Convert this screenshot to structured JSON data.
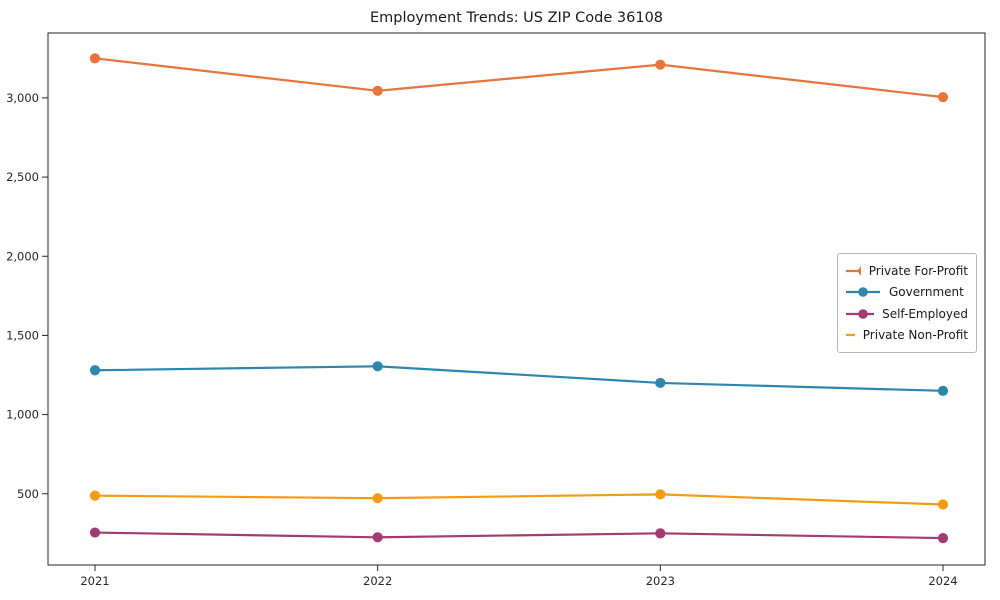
{
  "chart_data": {
    "type": "line",
    "title": "Employment Trends: US ZIP Code 36108",
    "categories": [
      "2021",
      "2022",
      "2023",
      "2024"
    ],
    "series": [
      {
        "name": "Private For-Profit",
        "color": "#E8743B",
        "values": [
          3250,
          3045,
          3210,
          3005
        ]
      },
      {
        "name": "Government",
        "color": "#2E86AB",
        "values": [
          1280,
          1305,
          1200,
          1150
        ]
      },
      {
        "name": "Self-Employed",
        "color": "#A23B72",
        "values": [
          255,
          225,
          250,
          220
        ]
      },
      {
        "name": "Private Non-Profit",
        "color": "#F39C12",
        "values": [
          488,
          472,
          496,
          432
        ]
      }
    ],
    "xlabel": "",
    "ylabel": "",
    "ylim": [
      50,
      3410
    ],
    "yticks": [
      500,
      1000,
      1500,
      2000,
      2500,
      3000
    ],
    "grid": false,
    "legend_position": "center-right",
    "axis_color": "#262626",
    "background": "#ffffff"
  }
}
